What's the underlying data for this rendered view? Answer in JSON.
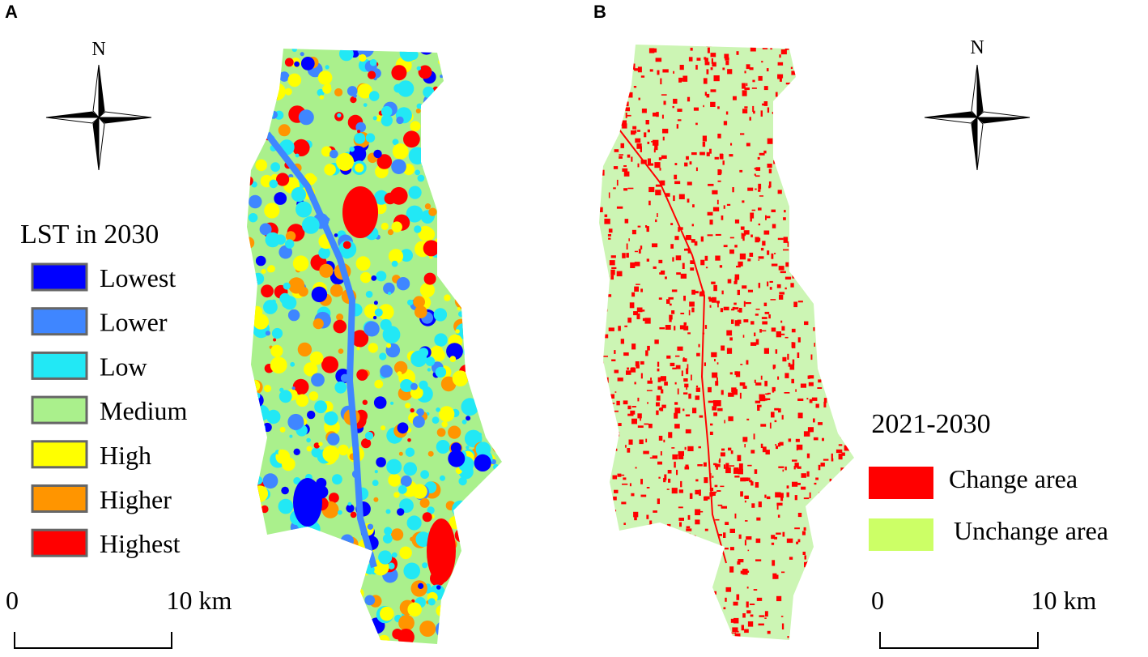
{
  "panels": [
    {
      "label": "A",
      "north": "N",
      "legend": {
        "title": "LST in 2030",
        "items": [
          {
            "label": "Lowest",
            "color": "#0000ff"
          },
          {
            "label": "Lower",
            "color": "#3f86ff"
          },
          {
            "label": "Low",
            "color": "#22e8f5"
          },
          {
            "label": "Medium",
            "color": "#aaf08c"
          },
          {
            "label": "High",
            "color": "#ffff00"
          },
          {
            "label": "Higher",
            "color": "#ff9500"
          },
          {
            "label": "Highest",
            "color": "#ff0000"
          }
        ]
      },
      "scale_bar": {
        "start": "0",
        "end": "10 km"
      }
    },
    {
      "label": "B",
      "north": "N",
      "legend": {
        "title": "2021-2030",
        "items": [
          {
            "label": "Change area",
            "color": "#ff0000"
          },
          {
            "label": "Unchange area",
            "color": "#ccff66"
          }
        ]
      },
      "scale_bar": {
        "start": "0",
        "end": "10 km"
      }
    }
  ]
}
